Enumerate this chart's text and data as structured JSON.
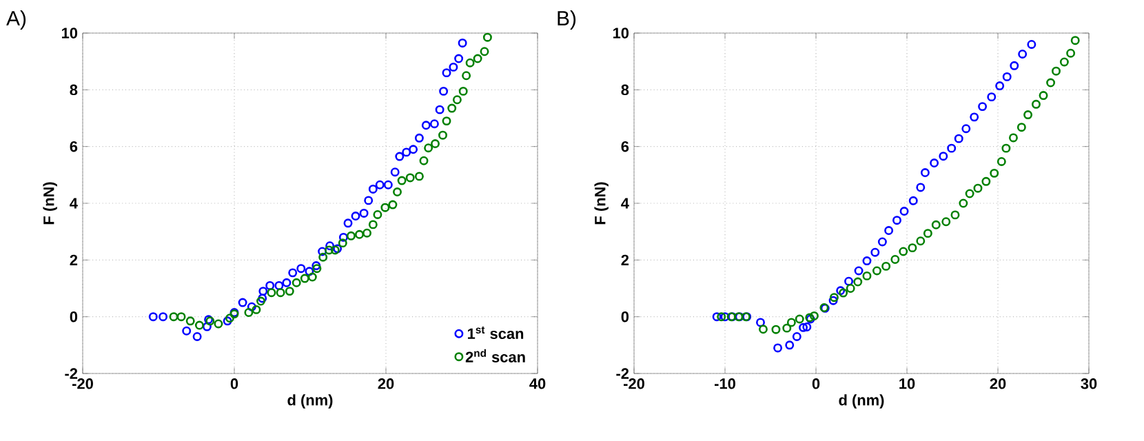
{
  "chart_data": [
    {
      "type": "scatter",
      "annotations": [
        "A)"
      ],
      "xlabel": "d (nm)",
      "ylabel": "F (nN)",
      "xlim": [
        -20,
        40
      ],
      "xticks": [
        -20,
        0,
        20,
        40
      ],
      "ylim": [
        -2,
        10
      ],
      "yticks": [
        -2,
        0,
        2,
        4,
        6,
        8,
        10
      ],
      "grid": true,
      "marker": "circle",
      "legend": "bottom right",
      "series": [
        {
          "name": "1$^{st}$ scan",
          "color": "#0000ff",
          "x": [
            -10.7,
            -9.4,
            -6.3,
            -4.9,
            -3.6,
            -3.4,
            -2.1,
            -0.9,
            0.0,
            1.1,
            2.3,
            3.7,
            3.8,
            4.7,
            5.9,
            6.9,
            7.7,
            8.8,
            9.9,
            10.8,
            11.6,
            12.6,
            13.6,
            14.4,
            15.0,
            16.0,
            17.1,
            17.7,
            18.3,
            19.2,
            20.3,
            21.2,
            21.8,
            22.7,
            23.6,
            24.4,
            25.3,
            26.4,
            27.1,
            27.6,
            28.0,
            28.9,
            29.6,
            30.1
          ],
          "values": [
            0,
            0,
            -0.5,
            -0.7,
            -0.35,
            -0.1,
            null,
            -0.15,
            0.15,
            0.5,
            0.35,
            0.65,
            0.9,
            1.1,
            1.1,
            1.2,
            1.55,
            1.7,
            1.6,
            1.8,
            2.3,
            2.5,
            2.4,
            2.8,
            3.3,
            3.55,
            3.65,
            4.1,
            4.5,
            4.65,
            4.65,
            5.1,
            5.65,
            5.8,
            5.9,
            6.3,
            6.75,
            6.8,
            7.3,
            7.95,
            8.6,
            8.8,
            9.1,
            9.65
          ]
        },
        {
          "name": "2$^{nd}$ scan",
          "color": "#008000",
          "x": [
            -8.0,
            -7.0,
            -5.8,
            -4.6,
            -3.2,
            -2.1,
            -0.6,
            0.0,
            1.9,
            2.9,
            3.5,
            4.9,
            6.1,
            7.3,
            8.2,
            9.3,
            10.3,
            10.9,
            11.7,
            12.5,
            13.3,
            14.3,
            15.4,
            16.5,
            17.5,
            18.3,
            18.9,
            19.9,
            20.9,
            21.5,
            22.1,
            23.2,
            24.4,
            25.0,
            25.6,
            26.5,
            27.5,
            28.0,
            28.7,
            29.4,
            30.2,
            30.6,
            31.1,
            32.1,
            33.0,
            33.4
          ],
          "values": [
            0,
            0,
            -0.15,
            -0.3,
            -0.15,
            -0.25,
            -0.05,
            0.1,
            0.15,
            0.25,
            0.55,
            0.85,
            0.85,
            0.9,
            1.2,
            1.35,
            1.4,
            1.7,
            2.1,
            2.35,
            2.35,
            2.6,
            2.85,
            2.9,
            2.95,
            3.25,
            3.6,
            3.85,
            3.95,
            4.4,
            4.8,
            4.9,
            4.95,
            5.5,
            5.95,
            6.1,
            6.4,
            6.9,
            7.35,
            7.65,
            7.95,
            8.5,
            8.95,
            9.1,
            9.35,
            9.85
          ]
        }
      ]
    },
    {
      "type": "scatter",
      "annotations": [
        "B)"
      ],
      "xlabel": "d (nm)",
      "ylabel": "F (nN)",
      "xlim": [
        -20,
        30
      ],
      "xticks": [
        -20,
        -10,
        0,
        10,
        20,
        30
      ],
      "ylim": [
        -2,
        10
      ],
      "yticks": [
        -2,
        0,
        2,
        4,
        6,
        8,
        10
      ],
      "grid": true,
      "marker": "circle",
      "series": [
        {
          "color": "#0000ff",
          "x": [
            -10.9,
            -10.0,
            -9.2,
            -8.4,
            -7.6,
            -6.1,
            -4.2,
            -2.9,
            -2.1,
            -1.4,
            -1.0,
            -0.6,
            1.0,
            1.9,
            2.7,
            3.6,
            4.7,
            5.6,
            6.5,
            7.3,
            8.0,
            8.9,
            9.7,
            10.7,
            11.5,
            12.0,
            13.0,
            14.0,
            14.9,
            15.7,
            16.5,
            17.4,
            18.3,
            19.3,
            20.2,
            21.0,
            21.8,
            22.7,
            23.7
          ],
          "values": [
            0,
            0,
            0,
            0,
            0,
            -0.2,
            -1.1,
            -1.0,
            -0.7,
            -0.38,
            -0.36,
            -0.08,
            0.3,
            0.57,
            0.92,
            1.25,
            1.62,
            1.97,
            2.27,
            2.64,
            3.04,
            3.4,
            3.72,
            4.09,
            4.56,
            5.08,
            5.42,
            5.66,
            5.94,
            6.28,
            6.63,
            7.04,
            7.41,
            7.75,
            8.14,
            8.46,
            8.85,
            9.26,
            9.6
          ]
        },
        {
          "color": "#008000",
          "x": [
            -10.4,
            -9.3,
            -8.5,
            -7.7,
            -5.8,
            -4.4,
            -3.2,
            -2.7,
            -1.8,
            -0.7,
            -0.2,
            0.9,
            2.0,
            3.0,
            3.8,
            4.6,
            5.6,
            6.7,
            7.7,
            8.7,
            9.6,
            10.6,
            11.5,
            12.3,
            13.2,
            14.3,
            15.3,
            16.2,
            16.9,
            17.8,
            18.7,
            19.6,
            20.4,
            20.9,
            21.7,
            22.6,
            23.3,
            24.2,
            25.0,
            25.8,
            26.4,
            27.3,
            28.0,
            28.5
          ],
          "values": [
            0,
            0,
            0,
            0,
            -0.44,
            -0.45,
            -0.4,
            -0.2,
            -0.08,
            -0.03,
            0.03,
            0.32,
            0.68,
            0.84,
            1.0,
            1.23,
            1.44,
            1.62,
            1.78,
            2.02,
            2.3,
            2.43,
            2.67,
            2.94,
            3.24,
            3.35,
            3.59,
            4.0,
            4.34,
            4.53,
            4.77,
            5.06,
            5.47,
            5.94,
            6.31,
            6.68,
            7.12,
            7.49,
            7.8,
            8.25,
            8.66,
            8.98,
            9.29,
            9.74
          ]
        }
      ]
    }
  ]
}
